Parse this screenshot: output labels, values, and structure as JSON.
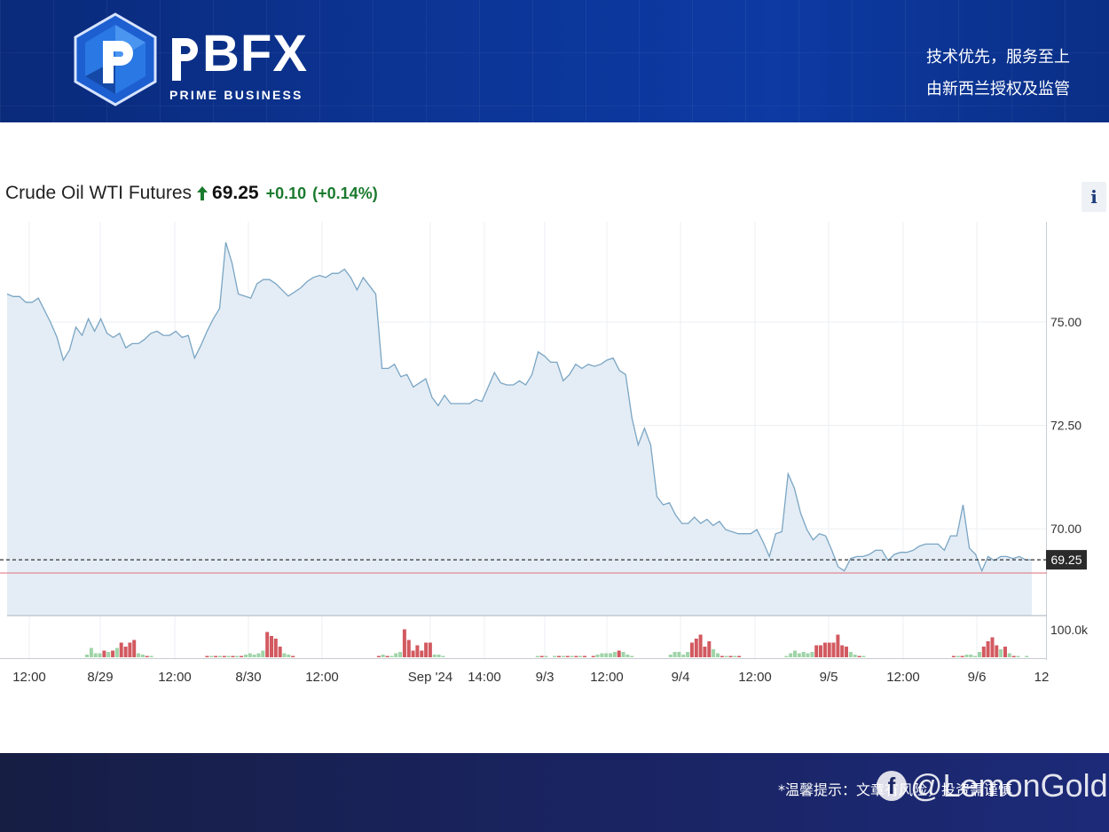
{
  "header": {
    "brand": "BFX",
    "brand_sub": "PRIME BUSINESS",
    "slogan_line1": "技术优先，服务至上",
    "slogan_line2": "由新西兰授权及监管"
  },
  "quote": {
    "name": "Crude Oil WTI Futures",
    "price": "69.25",
    "change": "+0.10",
    "change_pct": "(+0.14%)",
    "direction_icon": "up-arrow-icon",
    "up_color": "#1a7a2e",
    "info_label": "i"
  },
  "footer": {
    "notice": "*温馨提示：文章有风险，投资需谨慎",
    "watermark_handle": "@LemonGold",
    "watermark_icon": "facebook-icon"
  },
  "chart_data": {
    "type": "area",
    "instrument": "Crude Oil WTI Futures",
    "last_price": 69.25,
    "last_price_label": "69.25",
    "ylim": [
      67.9,
      77.3
    ],
    "y_ticks": [
      70.0,
      72.5,
      75.0
    ],
    "y_tick_labels": [
      "70.00",
      "72.50",
      "75.00"
    ],
    "x_tick_labels": [
      "12:00",
      "8/29",
      "12:00",
      "8/30",
      "12:00",
      "Sep '24",
      "14:00",
      "9/3",
      "12:00",
      "9/4",
      "12:00",
      "9/5",
      "12:00",
      "9/6",
      "12"
    ],
    "volume_label": "100.0k",
    "grid": true,
    "area_color": "#e4edf5",
    "line_color": "#7aa5c4",
    "reference_line_color": "#e28a94",
    "price_series": [
      75.68,
      75.62,
      75.62,
      75.48,
      75.48,
      75.58,
      75.28,
      74.98,
      74.63,
      74.08,
      74.33,
      74.88,
      74.68,
      75.08,
      74.78,
      75.08,
      74.73,
      74.63,
      74.73,
      74.38,
      74.48,
      74.48,
      74.58,
      74.73,
      74.78,
      74.68,
      74.68,
      74.78,
      74.63,
      74.68,
      74.13,
      74.43,
      74.78,
      75.08,
      75.33,
      76.93,
      76.43,
      75.68,
      75.63,
      75.58,
      75.93,
      76.03,
      76.03,
      75.93,
      75.78,
      75.63,
      75.73,
      75.83,
      75.98,
      76.08,
      76.13,
      76.08,
      76.18,
      76.18,
      76.28,
      76.08,
      75.78,
      76.08,
      75.88,
      75.68,
      73.88,
      73.88,
      73.98,
      73.68,
      73.73,
      73.43,
      73.53,
      73.63,
      73.18,
      72.98,
      73.23,
      73.03,
      73.03,
      73.03,
      73.03,
      73.13,
      73.08,
      73.43,
      73.78,
      73.53,
      73.48,
      73.48,
      73.58,
      73.48,
      73.73,
      74.28,
      74.18,
      74.03,
      74.03,
      73.58,
      73.73,
      73.98,
      73.88,
      73.98,
      73.93,
      73.98,
      74.08,
      74.13,
      73.83,
      73.73,
      72.68,
      72.03,
      72.43,
      72.03,
      70.78,
      70.58,
      70.63,
      70.33,
      70.13,
      70.13,
      70.28,
      70.13,
      70.23,
      70.08,
      70.18,
      69.98,
      69.93,
      69.88,
      69.88,
      69.88,
      69.98,
      69.68,
      69.33,
      69.88,
      69.93,
      71.33,
      70.98,
      70.38,
      69.98,
      69.73,
      69.88,
      69.83,
      69.48,
      69.08,
      68.98,
      69.28,
      69.33,
      69.33,
      69.38,
      69.48,
      69.48,
      69.23,
      69.38,
      69.43,
      69.43,
      69.48,
      69.58,
      69.63,
      69.63,
      69.63,
      69.48,
      69.83,
      69.83,
      70.58,
      69.53,
      69.38,
      68.98,
      69.33,
      69.23,
      69.33,
      69.33,
      69.28,
      69.33,
      69.25,
      69.25
    ],
    "volume_series": [
      0,
      0,
      0,
      0,
      0,
      0,
      0,
      0,
      0,
      0,
      0,
      0,
      10,
      35,
      15,
      15,
      25,
      20,
      25,
      35,
      55,
      40,
      55,
      65,
      15,
      10,
      5,
      5,
      0,
      0,
      0,
      0,
      0,
      0,
      0,
      0,
      0,
      0,
      0,
      0,
      5,
      5,
      5,
      5,
      5,
      5,
      5,
      5,
      5,
      10,
      15,
      10,
      15,
      25,
      95,
      80,
      70,
      40,
      15,
      10,
      5,
      0,
      0,
      0,
      0,
      0,
      0,
      0,
      0,
      0,
      0,
      0,
      0,
      0,
      0,
      0,
      0,
      0,
      0,
      0,
      5,
      10,
      5,
      5,
      15,
      20,
      105,
      65,
      25,
      45,
      25,
      55,
      55,
      10,
      10,
      5,
      0,
      0,
      0,
      0,
      0,
      0,
      0,
      0,
      0,
      0,
      0,
      0,
      0,
      0,
      0,
      0,
      0,
      0,
      0,
      0,
      0,
      5,
      5,
      5,
      0,
      5,
      5,
      5,
      5,
      5,
      5,
      5,
      5,
      0,
      5,
      10,
      15,
      15,
      15,
      20,
      25,
      20,
      10,
      5,
      0,
      0,
      0,
      0,
      0,
      0,
      0,
      0,
      10,
      20,
      20,
      10,
      20,
      55,
      70,
      85,
      40,
      60,
      30,
      15,
      5,
      5,
      5,
      5,
      5,
      0,
      0,
      0,
      0,
      0,
      0,
      0,
      0,
      0,
      0,
      5,
      15,
      25,
      15,
      20,
      15,
      20,
      45,
      45,
      55,
      55,
      55,
      85,
      45,
      40,
      20,
      10,
      5,
      5,
      0,
      0,
      0,
      0,
      0,
      0,
      0,
      0,
      0,
      0,
      0,
      0,
      0,
      0,
      0,
      0,
      0,
      0,
      0,
      0,
      5,
      5,
      5,
      10,
      10,
      5,
      20,
      40,
      60,
      75,
      45,
      30,
      40,
      15,
      5,
      5,
      0,
      5,
      0
    ]
  }
}
